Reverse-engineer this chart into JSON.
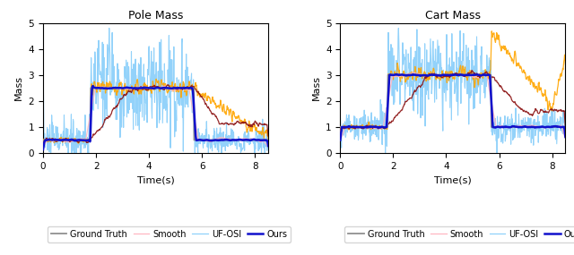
{
  "pole_title": "Pole Mass",
  "cart_title": "Cart Mass",
  "xlabel": "Time(s)",
  "ylabel": "Mass",
  "xlim": [
    0,
    8.5
  ],
  "ylim": [
    0,
    5
  ],
  "yticks": [
    0,
    1,
    2,
    3,
    4,
    5
  ],
  "xticks": [
    0,
    2,
    4,
    6,
    8
  ],
  "colors": {
    "ground_truth": "#909090",
    "naive": "#FFA500",
    "smooth": "#FFB6C1",
    "weighted": "#8B1010",
    "uposi": "#87CEFA",
    "ours": "#1010CC"
  },
  "step1": 1.8,
  "step2": 5.7,
  "pole_low": 0.5,
  "pole_high": 2.5,
  "cart_low": 1.0,
  "cart_high": 3.0,
  "n_points": 600,
  "t_end": 8.5
}
